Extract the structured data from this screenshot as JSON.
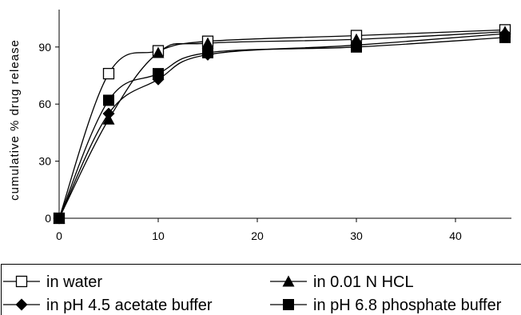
{
  "chart_data": {
    "type": "line",
    "title": "",
    "xlabel": "",
    "ylabel": "cumulative % drug release",
    "xlim": [
      0,
      46
    ],
    "ylim": [
      0,
      112
    ],
    "x_ticks": [
      "0",
      "10",
      "20",
      "30",
      "40"
    ],
    "y_ticks": [
      "0",
      "30",
      "60",
      "90"
    ],
    "grid": false,
    "legend_position": "bottom",
    "series": [
      {
        "name": "in water",
        "marker": "open-square",
        "x": [
          0,
          5,
          10,
          15,
          30,
          45
        ],
        "y": [
          0,
          76,
          88,
          93,
          96,
          99
        ]
      },
      {
        "name": "in 0.01 N HCL",
        "marker": "filled-triangle",
        "x": [
          0,
          5,
          10,
          15,
          30,
          45
        ],
        "y": [
          0,
          52,
          87,
          92,
          94,
          98
        ]
      },
      {
        "name": "in pH 4.5 acetate buffer",
        "marker": "filled-diamond",
        "x": [
          0,
          5,
          10,
          15,
          30,
          45
        ],
        "y": [
          0,
          55,
          73,
          86,
          91,
          97
        ]
      },
      {
        "name": "in pH 6.8 phosphate buffer",
        "marker": "filled-square",
        "x": [
          0,
          5,
          10,
          15,
          30,
          45
        ],
        "y": [
          0,
          62,
          76,
          87,
          90,
          95
        ]
      }
    ]
  }
}
